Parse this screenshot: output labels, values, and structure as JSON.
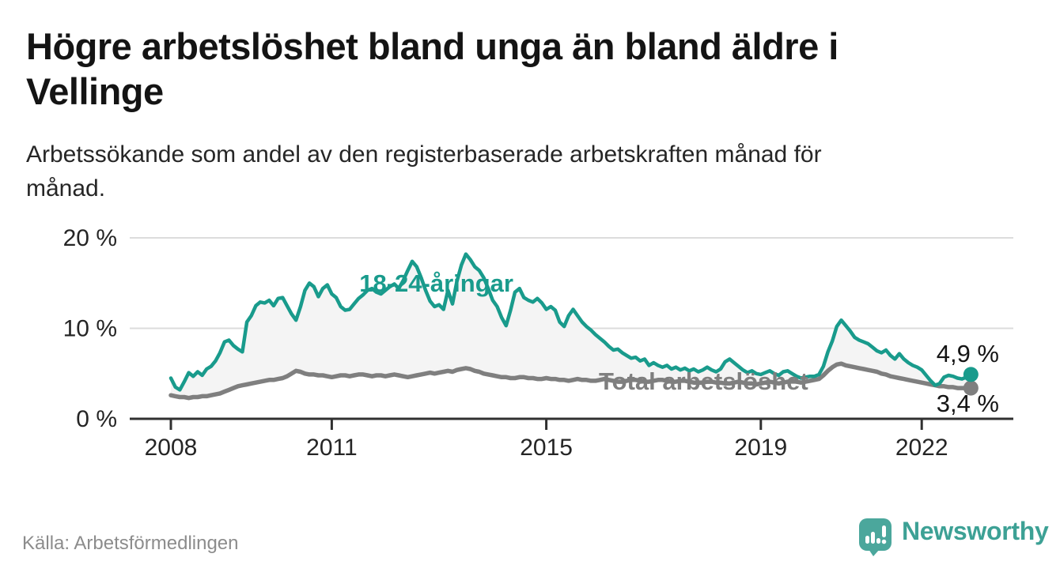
{
  "header": {
    "title_line1": "Högre arbetslöshet bland unga än bland äldre i",
    "title_line2": "Vellinge",
    "subtitle_line1": "Arbetssökande som andel av den registerbaserade arbetskraften månad för",
    "subtitle_line2": "månad."
  },
  "footer": {
    "source": "Källa: Arbetsförmedlingen",
    "logo_text": "Newsworthy"
  },
  "colors": {
    "youth": "#199b8c",
    "total": "#7f7f7f",
    "band": "#f4f4f4",
    "grid": "#dcdcdc",
    "axis": "#303030",
    "logo_bubble": "#4ba79c",
    "logo_text": "#3da195"
  },
  "chart_data": {
    "type": "line",
    "unit": "%",
    "x_start_year": 2008,
    "points_per_year": 12,
    "x_ticks": [
      2008,
      2011,
      2015,
      2019,
      2022
    ],
    "y_ticks": [
      0,
      10,
      20
    ],
    "y_tick_labels": [
      "0 %",
      "10 %",
      "20 %"
    ],
    "ylim": [
      0,
      21
    ],
    "grid": true,
    "band_between_series": true,
    "series": [
      {
        "name": "18-24-åringar",
        "color": "#199b8c",
        "end_label": "4,9 %",
        "last_value": 4.9,
        "values": [
          4.5,
          3.5,
          3.2,
          4.1,
          5.1,
          4.7,
          5.2,
          4.8,
          5.5,
          5.8,
          6.4,
          7.3,
          8.5,
          8.7,
          8.1,
          7.7,
          7.4,
          10.7,
          11.4,
          12.5,
          12.9,
          12.8,
          13.1,
          12.5,
          13.3,
          13.4,
          12.5,
          11.6,
          10.9,
          12.4,
          14.2,
          15.0,
          14.6,
          13.5,
          14.4,
          14.8,
          13.8,
          13.4,
          12.4,
          12.0,
          12.1,
          12.7,
          13.3,
          13.7,
          14.2,
          14.4,
          14.0,
          13.8,
          14.2,
          14.6,
          14.9,
          14.4,
          15.3,
          16.4,
          17.4,
          16.8,
          15.6,
          14.2,
          13.0,
          12.4,
          12.6,
          12.1,
          14.2,
          12.7,
          15.2,
          17.0,
          18.2,
          17.6,
          16.8,
          16.4,
          15.6,
          14.4,
          13.1,
          12.4,
          11.2,
          10.3,
          12.0,
          14.0,
          14.4,
          13.4,
          13.1,
          12.9,
          13.3,
          12.8,
          12.1,
          12.4,
          12.0,
          10.7,
          10.2,
          11.4,
          12.1,
          11.4,
          10.7,
          10.2,
          9.8,
          9.3,
          8.9,
          8.5,
          8.0,
          7.6,
          7.7,
          7.3,
          7.0,
          6.7,
          6.8,
          6.4,
          6.6,
          5.9,
          6.2,
          5.9,
          5.7,
          5.9,
          5.5,
          5.7,
          5.4,
          5.6,
          5.3,
          5.5,
          5.2,
          5.4,
          5.7,
          5.4,
          5.2,
          5.5,
          6.3,
          6.6,
          6.2,
          5.8,
          5.4,
          5.1,
          5.3,
          5.0,
          4.9,
          5.1,
          5.3,
          5.0,
          4.8,
          5.2,
          5.3,
          5.0,
          4.7,
          4.5,
          4.6,
          4.7,
          4.7,
          4.9,
          5.8,
          7.4,
          8.6,
          10.2,
          10.9,
          10.3,
          9.7,
          9.0,
          8.7,
          8.5,
          8.3,
          7.9,
          7.5,
          7.3,
          7.6,
          7.0,
          6.6,
          7.2,
          6.6,
          6.2,
          5.9,
          5.7,
          5.4,
          4.8,
          4.2,
          3.7,
          3.9,
          4.6,
          4.8,
          4.7,
          4.5,
          4.4,
          4.6,
          4.9
        ]
      },
      {
        "name": "Total arbetslöshet",
        "color": "#7f7f7f",
        "end_label": "3,4 %",
        "last_value": 3.4,
        "values": [
          2.6,
          2.5,
          2.4,
          2.4,
          2.3,
          2.4,
          2.4,
          2.5,
          2.5,
          2.6,
          2.7,
          2.8,
          3.0,
          3.2,
          3.4,
          3.6,
          3.7,
          3.8,
          3.9,
          4.0,
          4.1,
          4.2,
          4.3,
          4.3,
          4.4,
          4.5,
          4.7,
          5.0,
          5.3,
          5.2,
          5.0,
          4.9,
          4.9,
          4.8,
          4.8,
          4.7,
          4.6,
          4.7,
          4.8,
          4.8,
          4.7,
          4.8,
          4.9,
          4.9,
          4.8,
          4.7,
          4.8,
          4.8,
          4.7,
          4.8,
          4.9,
          4.8,
          4.7,
          4.6,
          4.7,
          4.8,
          4.9,
          5.0,
          5.1,
          5.0,
          5.1,
          5.2,
          5.3,
          5.2,
          5.4,
          5.5,
          5.6,
          5.5,
          5.3,
          5.2,
          5.0,
          4.9,
          4.8,
          4.7,
          4.6,
          4.6,
          4.5,
          4.5,
          4.6,
          4.6,
          4.5,
          4.5,
          4.4,
          4.4,
          4.5,
          4.4,
          4.4,
          4.3,
          4.3,
          4.2,
          4.3,
          4.4,
          4.3,
          4.3,
          4.2,
          4.2,
          4.3,
          4.4,
          4.3,
          4.2,
          4.1,
          4.1,
          4.2,
          4.3,
          4.3,
          4.2,
          4.1,
          4.1,
          4.2,
          4.3,
          4.3,
          4.2,
          4.1,
          4.1,
          4.2,
          4.2,
          4.1,
          4.0,
          4.0,
          4.0,
          4.1,
          4.1,
          4.0,
          4.0,
          3.9,
          3.9,
          4.0,
          4.1,
          4.0,
          3.9,
          3.9,
          3.8,
          3.9,
          4.0,
          4.1,
          4.0,
          3.9,
          4.0,
          4.1,
          4.2,
          4.1,
          4.0,
          4.1,
          4.2,
          4.3,
          4.4,
          4.8,
          5.3,
          5.7,
          6.0,
          6.1,
          5.9,
          5.8,
          5.7,
          5.6,
          5.5,
          5.4,
          5.3,
          5.2,
          5.0,
          4.9,
          4.7,
          4.6,
          4.5,
          4.4,
          4.3,
          4.2,
          4.1,
          4.0,
          3.9,
          3.8,
          3.7,
          3.6,
          3.6,
          3.5,
          3.5,
          3.4,
          3.4,
          3.4,
          3.4
        ]
      }
    ],
    "annotations": [
      {
        "text": "18-24-åringar",
        "x_year": 2012.95,
        "y_pct": 14.05,
        "color": "#199b8c",
        "anchor": "middle"
      },
      {
        "text": "Total arbetslöshet",
        "x_year": 2015.98,
        "y_pct": 3.23,
        "color": "#7f7f7f",
        "anchor": "start"
      }
    ]
  }
}
